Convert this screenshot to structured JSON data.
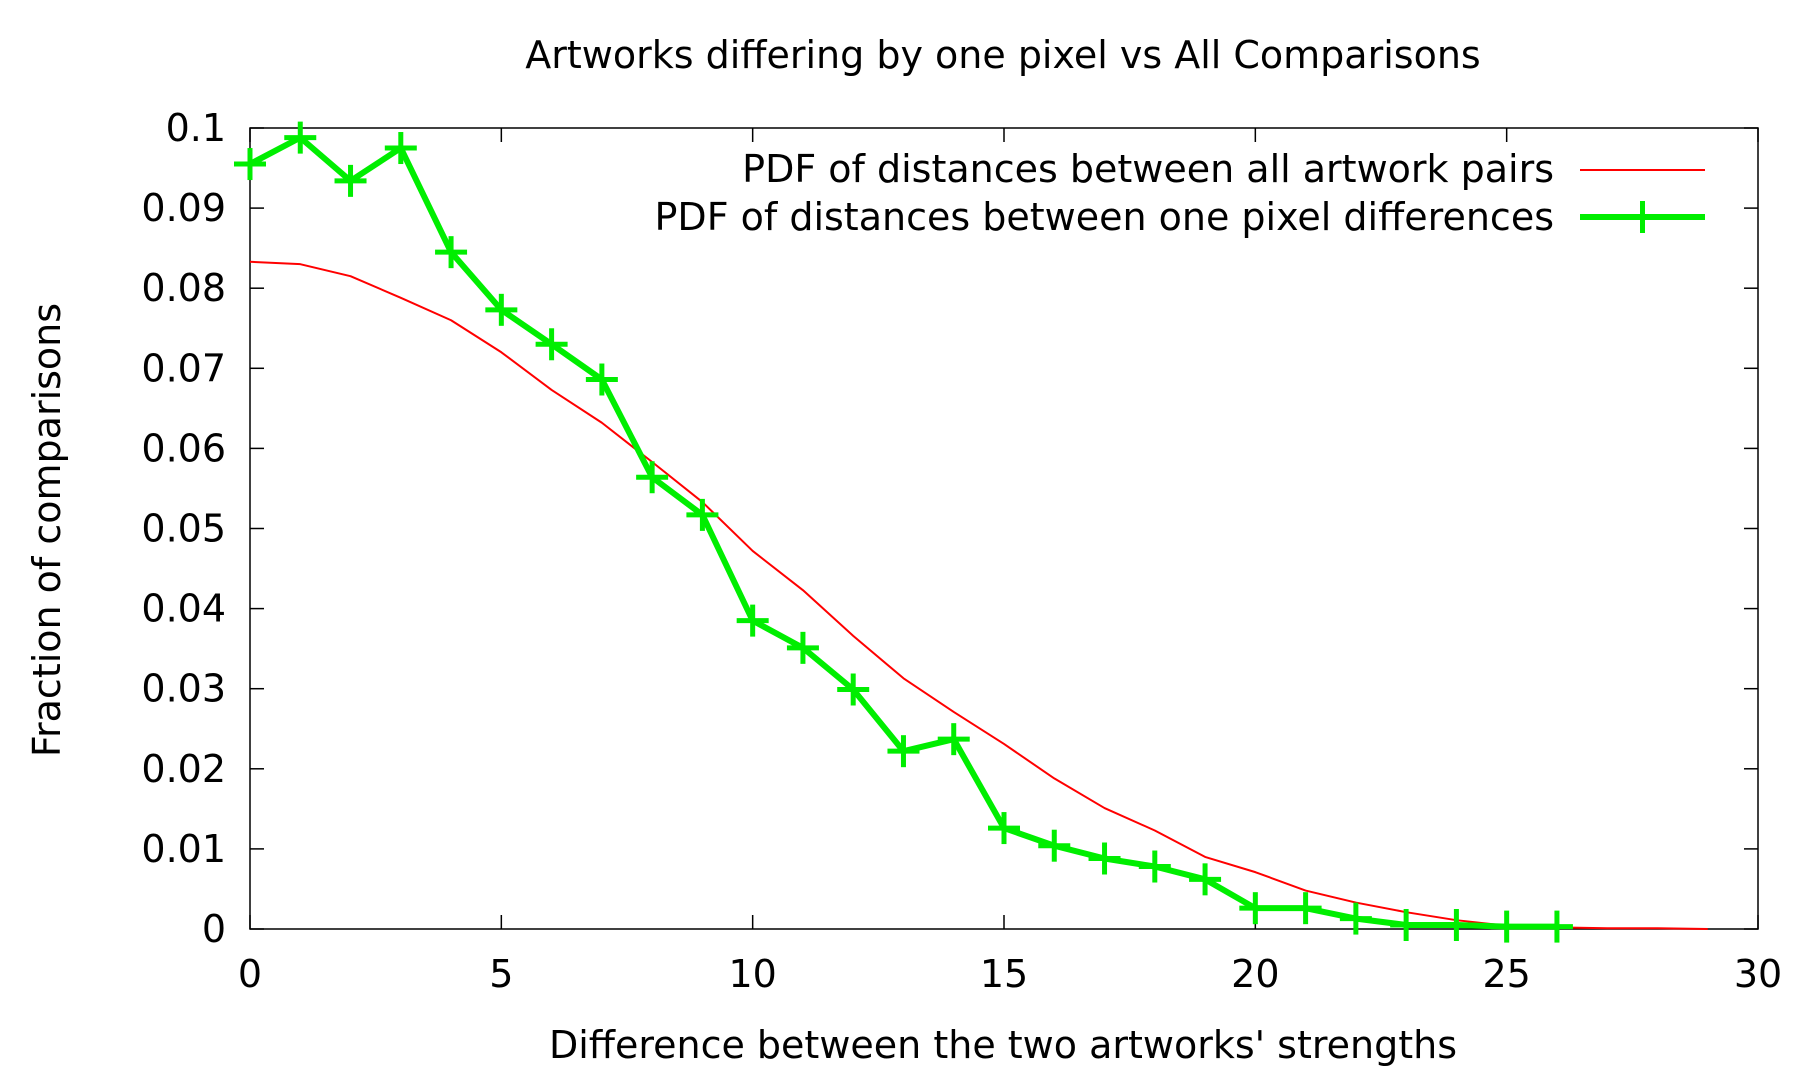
{
  "chart_data": {
    "type": "line",
    "title": "Artworks differing by one pixel vs All Comparisons",
    "xlabel": "Difference between the two artworks' strengths",
    "ylabel": "Fraction of comparisons",
    "xlim": [
      0,
      30
    ],
    "ylim": [
      0,
      0.1
    ],
    "x_ticks": [
      "0",
      "5",
      "10",
      "15",
      "20",
      "25",
      "30"
    ],
    "y_ticks": [
      "0",
      "0.01",
      "0.02",
      "0.03",
      "0.04",
      "0.05",
      "0.06",
      "0.07",
      "0.08",
      "0.09",
      "0.1"
    ],
    "grid": false,
    "legend_position": "top-right",
    "series": [
      {
        "name": "PDF of distances between all artwork pairs",
        "color": "#ff0000",
        "marker": "none",
        "x": [
          0,
          1,
          2,
          3,
          4,
          5,
          6,
          7,
          8,
          9,
          10,
          11,
          12,
          13,
          14,
          15,
          16,
          17,
          18,
          19,
          20,
          21,
          22,
          23,
          24,
          25,
          26,
          27,
          28,
          29
        ],
        "y": [
          0.0833,
          0.083,
          0.0815,
          0.0788,
          0.076,
          0.072,
          0.0673,
          0.0632,
          0.0583,
          0.0533,
          0.0472,
          0.0423,
          0.0366,
          0.0313,
          0.0271,
          0.0231,
          0.0188,
          0.0151,
          0.0123,
          0.009,
          0.0071,
          0.0048,
          0.0033,
          0.0021,
          0.0011,
          0.0004,
          0.0002,
          0.0001,
          0.0001,
          0.0
        ]
      },
      {
        "name": "PDF of distances between one pixel differences",
        "color": "#00ee00",
        "marker": "plus",
        "x": [
          0,
          1,
          2,
          3,
          4,
          5,
          6,
          7,
          8,
          9,
          10,
          11,
          12,
          13,
          14,
          15,
          16,
          17,
          18,
          19,
          20,
          21,
          22,
          23,
          24,
          25,
          26
        ],
        "y": [
          0.0955,
          0.0988,
          0.0934,
          0.0975,
          0.0845,
          0.0773,
          0.073,
          0.0686,
          0.0564,
          0.0517,
          0.0385,
          0.0351,
          0.0299,
          0.0222,
          0.0237,
          0.0126,
          0.0104,
          0.0088,
          0.0078,
          0.0062,
          0.0026,
          0.0026,
          0.0013,
          0.0005,
          0.0005,
          0.0003,
          0.0003
        ]
      }
    ]
  }
}
